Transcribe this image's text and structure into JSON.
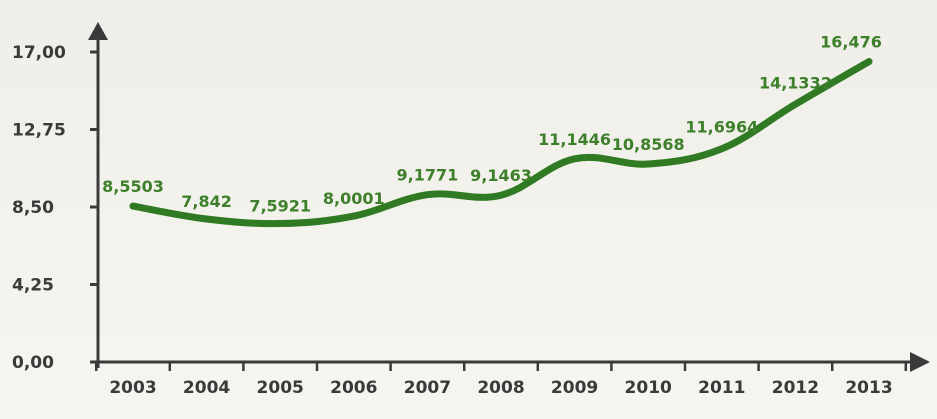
{
  "chart_data": {
    "type": "line",
    "title": "",
    "xlabel": "",
    "ylabel": "",
    "categories": [
      "2003",
      "2004",
      "2005",
      "2006",
      "2007",
      "2008",
      "2009",
      "2010",
      "2011",
      "2012",
      "2013"
    ],
    "series": [
      {
        "values": [
          8.5503,
          7.842,
          7.5921,
          8.0001,
          9.1771,
          9.1463,
          11.1446,
          10.8568,
          11.6964,
          14.1332,
          16.476
        ],
        "labels": [
          "8,5503",
          "7,842",
          "7,5921",
          "8,0001",
          "9,1771",
          "9,1463",
          "11,1446",
          "10,8568",
          "11,6964",
          "14,1332",
          "16,476"
        ]
      }
    ],
    "yticks": [
      0,
      4.25,
      8.5,
      12.75,
      17
    ],
    "ytick_labels": [
      "0,00",
      "4,25",
      "8,50",
      "12,75",
      "17,00"
    ],
    "ylim": [
      0,
      17
    ],
    "grid": false,
    "legend": "none",
    "colors": {
      "line": "#2f7a22",
      "label": "#3d7f2a",
      "axis": "#3a3a3a"
    }
  }
}
